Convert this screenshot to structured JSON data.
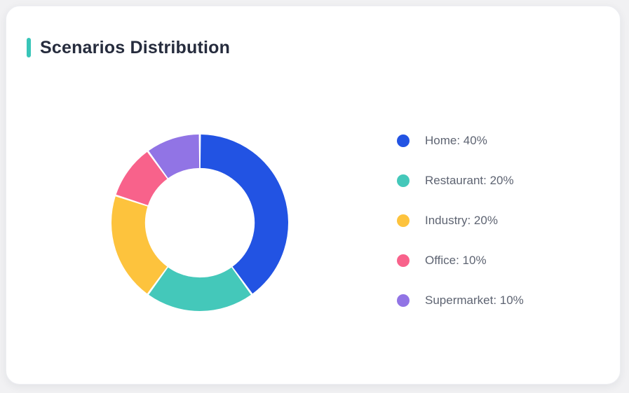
{
  "header": {
    "title": "Scenarios Distribution"
  },
  "theme": {
    "page_background": "#f1f1f3",
    "card_background": "#ffffff",
    "accent_color": "#38c5b8",
    "title_color": "#262c3d",
    "legend_text_color": "#5e6472"
  },
  "chart_data": {
    "type": "pie",
    "subtype": "donut",
    "title": "Scenarios Distribution",
    "legend_position": "right",
    "legend_format": "{label}: {value}%",
    "start_angle_deg": 0,
    "direction": "clockwise",
    "inner_radius_ratio": 0.62,
    "segments": [
      {
        "label": "Home",
        "value": 40,
        "color": "#2253e3"
      },
      {
        "label": "Restaurant",
        "value": 20,
        "color": "#44c8ba"
      },
      {
        "label": "Industry",
        "value": 20,
        "color": "#fdc33d"
      },
      {
        "label": "Office",
        "value": 10,
        "color": "#f8628b"
      },
      {
        "label": "Supermarket",
        "value": 10,
        "color": "#9174e5"
      }
    ]
  }
}
